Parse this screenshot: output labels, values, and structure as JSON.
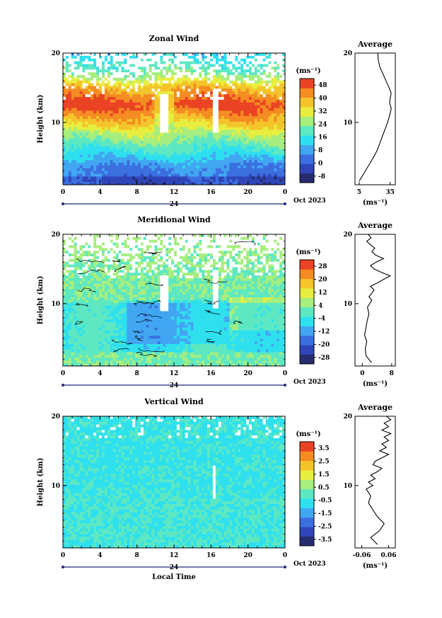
{
  "chart_data": [
    {
      "type": "heatmap",
      "title": "Zonal Wind",
      "ylabel": "Height (km)",
      "ylim": [
        1,
        20
      ],
      "y_ticks": [
        "20",
        "10"
      ],
      "x_ticks": [
        "0",
        "4",
        "8",
        "12",
        "16",
        "20",
        "0"
      ],
      "xlim": [
        0,
        24
      ],
      "date_mark": "24",
      "date_label": "Oct 2023",
      "colorbar": {
        "unit": "(ms⁻¹)",
        "labels": [
          "48",
          "40",
          "32",
          "24",
          "16",
          "8",
          "0",
          "-8"
        ],
        "range": [
          -12,
          52
        ]
      },
      "profile": {
        "title": "Average",
        "x_ticks": [
          "5",
          "35"
        ],
        "xlim": [
          1,
          40
        ],
        "unit": "(ms⁻¹)",
        "y_ticks": [
          "20",
          "10"
        ],
        "heights": [
          1.5,
          2,
          3,
          4,
          5,
          6,
          7,
          8,
          9,
          10,
          11,
          12,
          12.8,
          13.5,
          14.2,
          15,
          16,
          17,
          18,
          19,
          20
        ],
        "values": [
          5,
          7,
          11,
          15,
          19,
          22.5,
          25,
          27.5,
          30,
          32.5,
          34.5,
          36,
          34.5,
          35,
          36,
          34,
          31,
          28,
          25,
          23.5,
          23
        ]
      }
    },
    {
      "type": "heatmap",
      "title": "Meridional Wind",
      "ylabel": "Height (km)",
      "ylim": [
        1,
        20
      ],
      "y_ticks": [
        "20",
        "10"
      ],
      "x_ticks": [
        "0",
        "4",
        "8",
        "12",
        "16",
        "20",
        "0"
      ],
      "xlim": [
        0,
        24
      ],
      "date_mark": "24",
      "date_label": "Oct 2023",
      "colorbar": {
        "unit": "(ms⁻¹)",
        "labels": [
          "28",
          "20",
          "12",
          "4",
          "-4",
          "-12",
          "-20",
          "-28"
        ],
        "range": [
          -32,
          32
        ]
      },
      "profile": {
        "title": "Average",
        "x_ticks": [
          "0",
          "8"
        ],
        "xlim": [
          -2,
          9
        ],
        "unit": "(ms⁻¹)",
        "y_ticks": [
          "20",
          "10"
        ],
        "heights": [
          1.5,
          2.5,
          3.5,
          4.5,
          5.5,
          6.5,
          7.5,
          8.5,
          9.5,
          10.5,
          11,
          11.5,
          12,
          12.5,
          13,
          13.5,
          14,
          14.5,
          15,
          15.5,
          16,
          16.5,
          17,
          17.5,
          18,
          18.5,
          19,
          19.5,
          20
        ],
        "values": [
          2.5,
          1,
          0.8,
          1.2,
          0.6,
          1,
          1.3,
          1.8,
          1.4,
          2.6,
          1.8,
          2.6,
          3.2,
          2.2,
          4.2,
          5.8,
          7.6,
          5.2,
          3.2,
          2.2,
          3.8,
          5.8,
          3.6,
          2.6,
          3.4,
          2.2,
          1.2,
          2.4,
          1.6
        ]
      }
    },
    {
      "type": "heatmap",
      "title": "Vertical Wind",
      "ylabel": "Height (km)",
      "xlabel": "Local Time",
      "ylim": [
        1,
        20
      ],
      "y_ticks": [
        "20",
        "10"
      ],
      "x_ticks": [
        "0",
        "4",
        "8",
        "12",
        "16",
        "20",
        "0"
      ],
      "xlim": [
        0,
        24
      ],
      "date_mark": "24",
      "date_label": "Oct 2023",
      "colorbar": {
        "unit": "(ms⁻¹)",
        "labels": [
          "3.5",
          "2.5",
          "1.5",
          "0.5",
          "-0.5",
          "-1.5",
          "-2.5",
          "-3.5"
        ],
        "range": [
          -4,
          4
        ]
      },
      "profile": {
        "title": "Average",
        "x_ticks": [
          "-0.06",
          "0.06"
        ],
        "xlim": [
          -0.09,
          0.09
        ],
        "unit": "(ms⁻¹)",
        "y_ticks": [
          "20",
          "10"
        ],
        "heights": [
          1.5,
          2.5,
          3.5,
          4.5,
          5.5,
          6.5,
          7.5,
          8.5,
          9.5,
          10,
          10.5,
          11,
          11.5,
          12,
          12.5,
          13,
          13.5,
          14,
          14.5,
          15,
          15.5,
          16,
          16.5,
          17,
          17.5,
          18,
          18.5,
          19,
          19.5,
          20
        ],
        "values": [
          0.01,
          -0.02,
          0.02,
          0.04,
          0.01,
          -0.01,
          -0.03,
          -0.02,
          -0.04,
          -0.01,
          -0.03,
          0.0,
          -0.02,
          0.01,
          0.03,
          -0.01,
          0.0,
          0.03,
          0.06,
          0.02,
          0.05,
          0.03,
          0.06,
          0.04,
          0.07,
          0.03,
          0.06,
          0.04,
          0.07,
          0.05
        ]
      }
    }
  ],
  "colors": {
    "scale": [
      "#262c6e",
      "#2f45b8",
      "#3b6fe0",
      "#41a6f2",
      "#2ee0ee",
      "#5de8c2",
      "#a6ee7d",
      "#e8ee3e",
      "#f4c52b",
      "#f48c22",
      "#ea4323"
    ],
    "gap": "#ffffff",
    "axis": "#000000",
    "date_bar": "#22287a"
  }
}
